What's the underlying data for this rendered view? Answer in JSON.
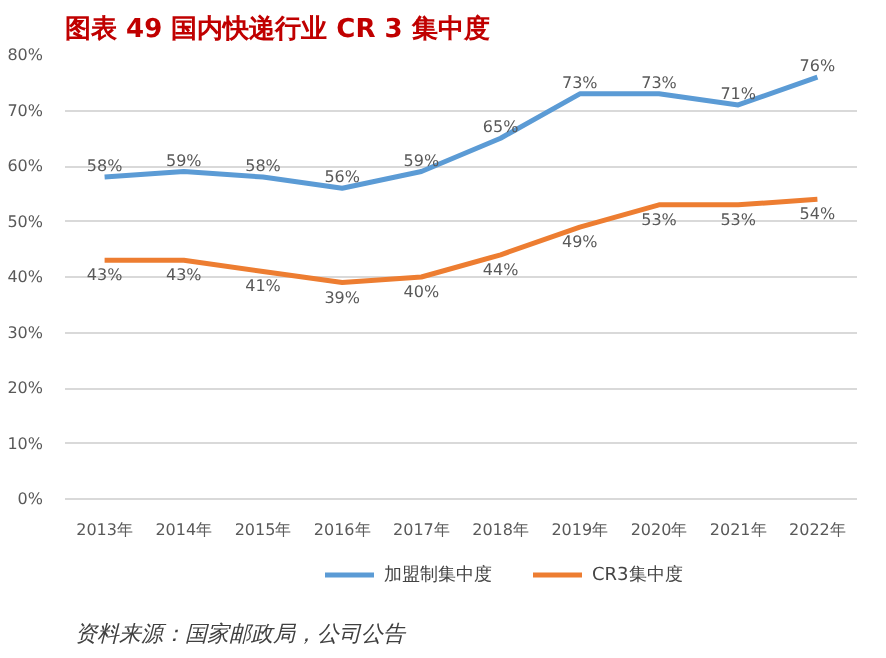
{
  "chart_data": {
    "type": "line",
    "title": "图表 49  国内快递行业 CR 3 集中度",
    "categories": [
      "2013年",
      "2014年",
      "2015年",
      "2016年",
      "2017年",
      "2018年",
      "2019年",
      "2020年",
      "2021年",
      "2022年"
    ],
    "series": [
      {
        "name": "加盟制集中度",
        "color": "#5b9bd5",
        "values": [
          58,
          59,
          58,
          56,
          59,
          65,
          73,
          73,
          71,
          76
        ],
        "value_labels": [
          "58%",
          "59%",
          "58%",
          "56%",
          "59%",
          "65%",
          "73%",
          "73%",
          "71%",
          "76%"
        ]
      },
      {
        "name": "CR3集中度",
        "color": "#ed7d31",
        "values": [
          43,
          43,
          41,
          39,
          40,
          44,
          49,
          53,
          53,
          54
        ],
        "value_labels": [
          "43%",
          "43%",
          "41%",
          "39%",
          "40%",
          "44%",
          "49%",
          "53%",
          "53%",
          "54%"
        ]
      }
    ],
    "ylim": [
      0,
      80
    ],
    "yticks": [
      {
        "value": 0,
        "label": "0%"
      },
      {
        "value": 10,
        "label": "10%"
      },
      {
        "value": 20,
        "label": "20%"
      },
      {
        "value": 30,
        "label": "30%"
      },
      {
        "value": 40,
        "label": "40%"
      },
      {
        "value": 50,
        "label": "50%"
      },
      {
        "value": 60,
        "label": "60%"
      },
      {
        "value": 70,
        "label": "70%"
      },
      {
        "value": 80,
        "label": "80%"
      }
    ],
    "grid": "y",
    "legend": "bottom",
    "marker": "none",
    "line_style": "solid",
    "annotations": [
      "资料来源：国家邮政局，公司公告"
    ]
  }
}
